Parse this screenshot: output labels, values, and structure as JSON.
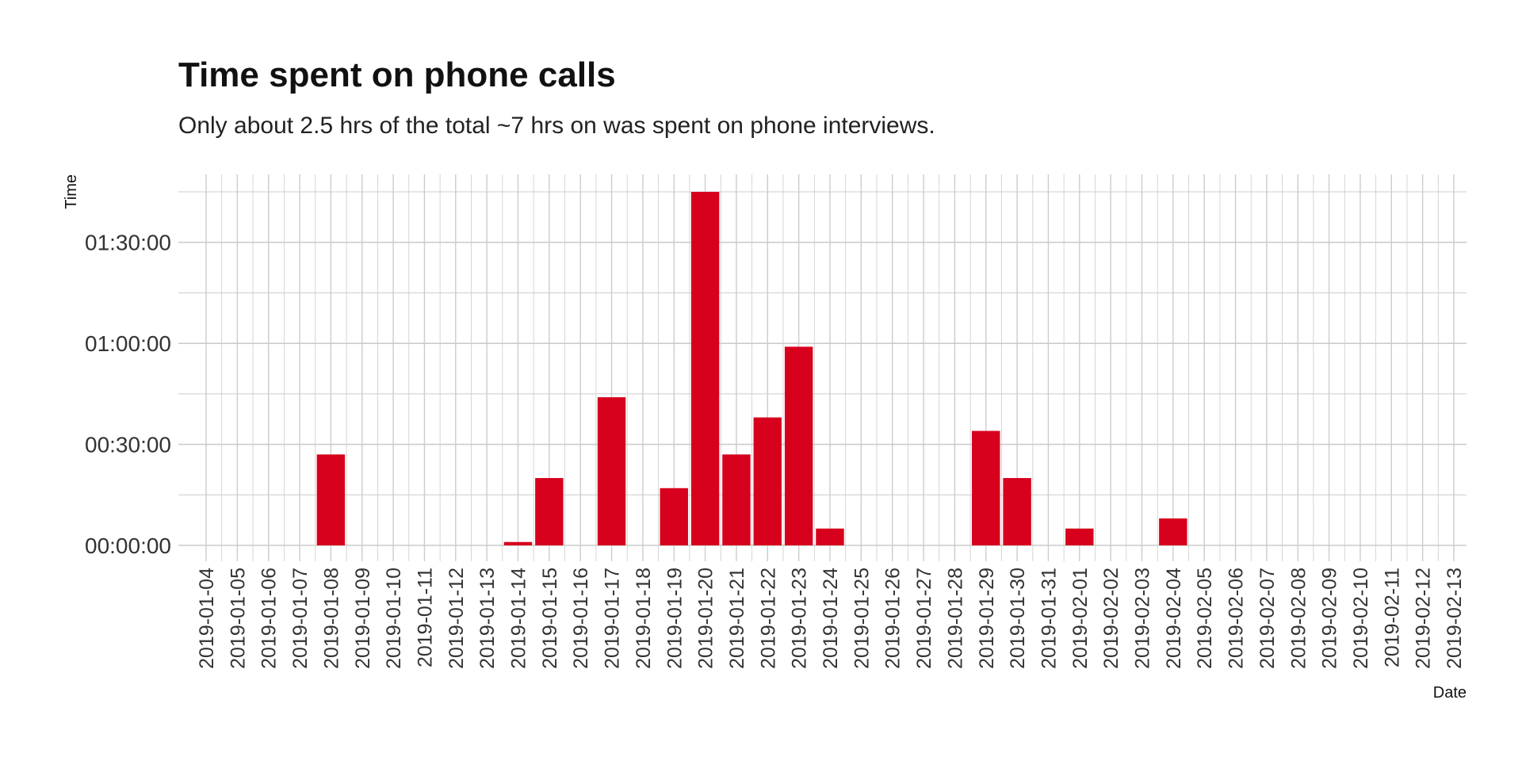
{
  "chart_data": {
    "type": "bar",
    "title": "Time spent on phone calls",
    "subtitle": "Only about 2.5 hrs of the total ~7 hrs on was spent on phone interviews.",
    "xlabel": "Date",
    "ylabel": "Time",
    "categories": [
      "2019-01-04",
      "2019-01-05",
      "2019-01-06",
      "2019-01-07",
      "2019-01-08",
      "2019-01-09",
      "2019-01-10",
      "2019-01-11",
      "2019-01-12",
      "2019-01-13",
      "2019-01-14",
      "2019-01-15",
      "2019-01-16",
      "2019-01-17",
      "2019-01-18",
      "2019-01-19",
      "2019-01-20",
      "2019-01-21",
      "2019-01-22",
      "2019-01-23",
      "2019-01-24",
      "2019-01-25",
      "2019-01-26",
      "2019-01-27",
      "2019-01-28",
      "2019-01-29",
      "2019-01-30",
      "2019-01-31",
      "2019-02-01",
      "2019-02-02",
      "2019-02-03",
      "2019-02-04",
      "2019-02-05",
      "2019-02-06",
      "2019-02-07",
      "2019-02-08",
      "2019-02-09",
      "2019-02-10",
      "2019-02-11",
      "2019-02-12",
      "2019-02-13"
    ],
    "values": [
      "00:00:00",
      "00:00:00",
      "00:00:00",
      "00:00:00",
      "00:27:00",
      "00:00:00",
      "00:00:00",
      "00:00:00",
      "00:00:00",
      "00:00:00",
      "00:01:00",
      "00:20:00",
      "00:00:00",
      "00:44:00",
      "00:00:00",
      "00:17:00",
      "01:45:00",
      "00:27:00",
      "00:38:00",
      "00:59:00",
      "00:05:00",
      "00:00:00",
      "00:00:00",
      "00:00:00",
      "00:00:00",
      "00:34:00",
      "00:20:00",
      "00:00:00",
      "00:05:00",
      "00:00:00",
      "00:00:00",
      "00:08:00",
      "00:00:00",
      "00:00:00",
      "00:00:00",
      "00:00:00",
      "00:00:00",
      "00:00:00",
      "00:00:00",
      "00:00:00",
      "00:00:00"
    ],
    "yticks": [
      "00:00:00",
      "00:30:00",
      "01:00:00",
      "01:30:00"
    ],
    "ylim": [
      "00:00:00",
      "01:50:00"
    ],
    "grid": true,
    "bar_color": "#d7001d",
    "grid_color": "#cccccc"
  }
}
